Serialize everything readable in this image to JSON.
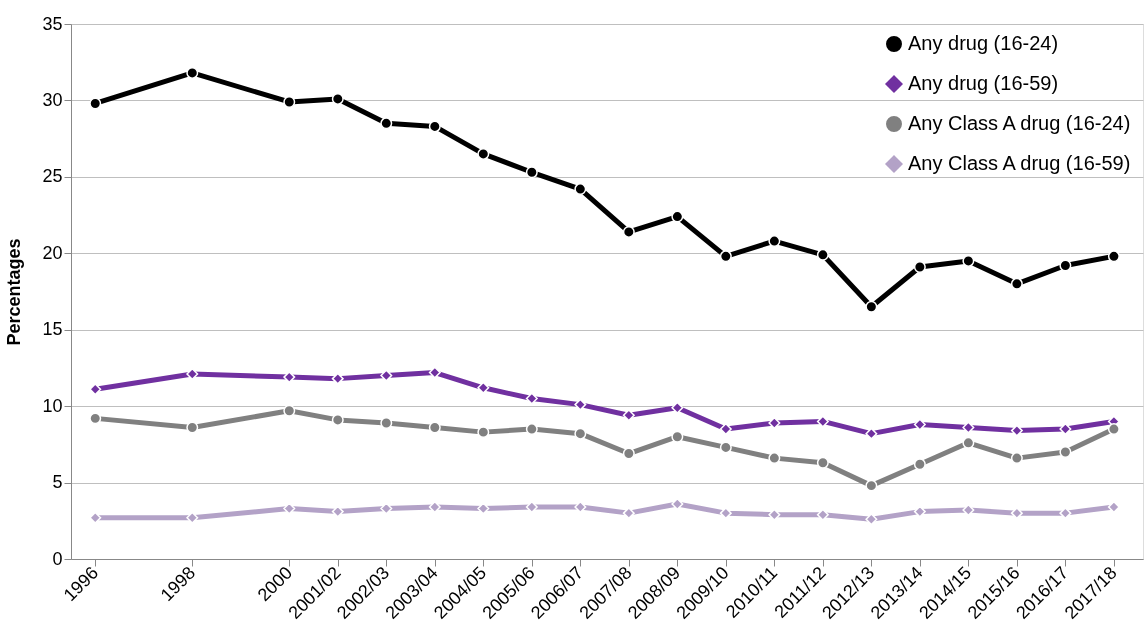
{
  "chart_data": {
    "type": "line",
    "ylabel": "Percentages",
    "x": [
      1996,
      1998,
      2000,
      2001,
      2002,
      2003,
      2004,
      2005,
      2006,
      2007,
      2008,
      2009,
      2010,
      2011,
      2012,
      2013,
      2014,
      2015,
      2016,
      2017
    ],
    "xlim": [
      1995.5,
      2017.6
    ],
    "xticks": [
      {
        "value": 1996,
        "label": "1996"
      },
      {
        "value": 1998,
        "label": "1998"
      },
      {
        "value": 2000,
        "label": "2000"
      },
      {
        "value": 2001,
        "label": "2001/02"
      },
      {
        "value": 2002,
        "label": "2002/03"
      },
      {
        "value": 2003,
        "label": "2003/04"
      },
      {
        "value": 2004,
        "label": "2004/05"
      },
      {
        "value": 2005,
        "label": "2005/06"
      },
      {
        "value": 2006,
        "label": "2006/07"
      },
      {
        "value": 2007,
        "label": "2007/08"
      },
      {
        "value": 2008,
        "label": "2008/09"
      },
      {
        "value": 2009,
        "label": "2009/10"
      },
      {
        "value": 2010,
        "label": "2010/11"
      },
      {
        "value": 2011,
        "label": "2011/12"
      },
      {
        "value": 2012,
        "label": "2012/13"
      },
      {
        "value": 2013,
        "label": "2013/14"
      },
      {
        "value": 2014,
        "label": "2014/15"
      },
      {
        "value": 2015,
        "label": "2015/16"
      },
      {
        "value": 2016,
        "label": "2016/17"
      },
      {
        "value": 2017,
        "label": "2017/18"
      }
    ],
    "ylim": [
      0,
      35
    ],
    "yticks": [
      0,
      5,
      10,
      15,
      20,
      25,
      30,
      35
    ],
    "grid": "y",
    "legend": "top right",
    "line_style": "solid",
    "series": [
      {
        "name": "Any drug (16-24)",
        "color": "#000000",
        "marker": "circle",
        "values": [
          29.8,
          31.8,
          29.9,
          30.1,
          28.5,
          28.3,
          26.5,
          25.3,
          24.2,
          21.4,
          22.4,
          19.8,
          20.8,
          19.9,
          16.5,
          19.1,
          19.5,
          18.0,
          19.2,
          19.8
        ]
      },
      {
        "name": "Any drug (16-59)",
        "color": "#7030a0",
        "marker": "diamond",
        "values": [
          11.1,
          12.1,
          11.9,
          11.8,
          12.0,
          12.2,
          11.2,
          10.5,
          10.1,
          9.4,
          9.9,
          8.5,
          8.9,
          9.0,
          8.2,
          8.8,
          8.6,
          8.4,
          8.5,
          9.0
        ]
      },
      {
        "name": "Any Class A drug (16-24)",
        "color": "#808080",
        "marker": "circle",
        "values": [
          9.2,
          8.6,
          9.7,
          9.1,
          8.9,
          8.6,
          8.3,
          8.5,
          8.2,
          6.9,
          8.0,
          7.3,
          6.6,
          6.3,
          4.8,
          6.2,
          7.6,
          6.6,
          7.0,
          8.5
        ]
      },
      {
        "name": "Any Class A drug (16-59)",
        "color": "#b3a2c7",
        "marker": "diamond",
        "values": [
          2.7,
          2.7,
          3.3,
          3.1,
          3.3,
          3.4,
          3.3,
          3.4,
          3.4,
          3.0,
          3.6,
          3.0,
          2.9,
          2.9,
          2.6,
          3.1,
          3.2,
          3.0,
          3.0,
          3.4
        ]
      }
    ]
  }
}
